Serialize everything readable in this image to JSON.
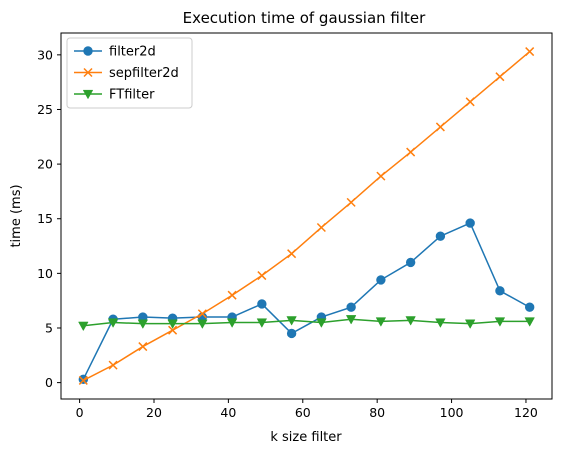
{
  "chart_data": {
    "type": "line",
    "title": "Execution time of gaussian filter",
    "xlabel": "k size filter",
    "ylabel": "time (ms)",
    "xlim": [
      -5,
      127
    ],
    "ylim": [
      -1.5,
      32
    ],
    "xticks": [
      0,
      20,
      40,
      60,
      80,
      100,
      120
    ],
    "yticks": [
      0,
      5,
      10,
      15,
      20,
      25,
      30
    ],
    "grid": false,
    "legend_position": "top-left",
    "x": [
      1,
      9,
      17,
      25,
      33,
      41,
      49,
      57,
      65,
      73,
      81,
      89,
      97,
      105,
      113,
      121
    ],
    "series": [
      {
        "name": "filter2d",
        "color": "#1f77b4",
        "marker": "circle",
        "values": [
          0.3,
          5.8,
          6.0,
          5.9,
          6.0,
          6.0,
          7.2,
          4.5,
          6.0,
          6.9,
          9.4,
          11.0,
          13.4,
          14.6,
          8.4,
          6.9
        ]
      },
      {
        "name": "sepfilter2d",
        "color": "#ff7f0e",
        "marker": "x",
        "values": [
          0.2,
          1.6,
          3.3,
          4.8,
          6.3,
          8.0,
          9.8,
          11.8,
          14.2,
          16.5,
          18.9,
          21.1,
          23.4,
          25.7,
          28.0,
          30.3
        ]
      },
      {
        "name": "FTfilter",
        "color": "#2ca02c",
        "marker": "triangle-down",
        "values": [
          5.2,
          5.5,
          5.4,
          5.4,
          5.4,
          5.5,
          5.5,
          5.7,
          5.5,
          5.8,
          5.6,
          5.7,
          5.5,
          5.4,
          5.6,
          5.6
        ]
      }
    ]
  }
}
